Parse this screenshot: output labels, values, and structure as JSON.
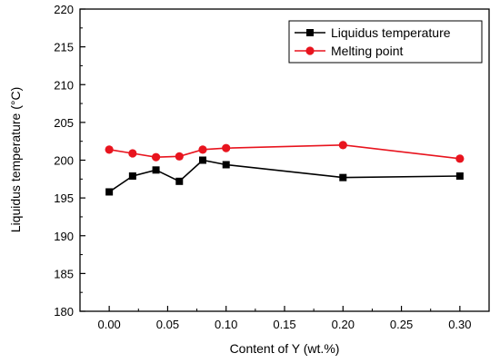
{
  "chart_data": {
    "type": "line",
    "xlabel": "Content of Y (wt.%)",
    "ylabel": "Liquidus temperature (°C)",
    "xlim": [
      -0.025,
      0.325
    ],
    "ylim": [
      180,
      220
    ],
    "xticks": [
      0.0,
      0.05,
      0.1,
      0.15,
      0.2,
      0.25,
      0.3
    ],
    "xtick_labels": [
      "0.00",
      "0.05",
      "0.10",
      "0.15",
      "0.20",
      "0.25",
      "0.30"
    ],
    "yticks": [
      180,
      185,
      190,
      195,
      200,
      205,
      210,
      215,
      220
    ],
    "ytick_labels": [
      "180",
      "185",
      "190",
      "195",
      "200",
      "205",
      "210",
      "215",
      "220"
    ],
    "grid": false,
    "legend_position": "top-right",
    "series": [
      {
        "name": "Liquidus temperature",
        "color": "#000000",
        "marker": "square",
        "x": [
          0.0,
          0.02,
          0.04,
          0.06,
          0.08,
          0.1,
          0.2,
          0.3
        ],
        "y": [
          195.8,
          197.9,
          198.7,
          197.2,
          200.0,
          199.4,
          197.7,
          197.9
        ]
      },
      {
        "name": "Melting point",
        "color": "#e8141e",
        "marker": "circle",
        "x": [
          0.0,
          0.02,
          0.04,
          0.06,
          0.08,
          0.1,
          0.2,
          0.3
        ],
        "y": [
          201.4,
          200.9,
          200.4,
          200.5,
          201.4,
          201.6,
          202.0,
          200.2
        ]
      }
    ]
  }
}
